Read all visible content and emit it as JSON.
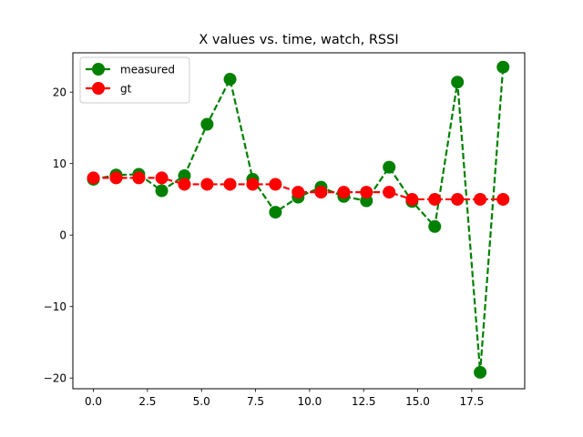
{
  "chart_data": {
    "type": "line",
    "title": "X values vs. time, watch, RSSI",
    "xlabel": "",
    "ylabel": "",
    "xlim": [
      -0.95,
      19.95
    ],
    "ylim": [
      -21.5,
      25.5
    ],
    "xticks": [
      0.0,
      2.5,
      5.0,
      7.5,
      10.0,
      12.5,
      15.0,
      17.5
    ],
    "xtick_labels": [
      "0.0",
      "2.5",
      "5.0",
      "7.5",
      "10.0",
      "12.5",
      "15.0",
      "17.5"
    ],
    "yticks": [
      -20,
      -10,
      0,
      10,
      20
    ],
    "ytick_labels": [
      "−20",
      "−10",
      "0",
      "10",
      "20"
    ],
    "grid": false,
    "legend_position": "top-left",
    "series": [
      {
        "name": "measured",
        "color": "#008000",
        "line_style": "dashed",
        "marker": "circle",
        "x": [
          0.0,
          1.05,
          2.1,
          3.16,
          4.21,
          5.26,
          6.32,
          7.37,
          8.42,
          9.47,
          10.53,
          11.58,
          12.63,
          13.68,
          14.74,
          15.79,
          16.84,
          17.89,
          18.95
        ],
        "values": [
          7.8,
          8.4,
          8.5,
          6.2,
          8.3,
          15.5,
          21.8,
          7.8,
          3.2,
          5.3,
          6.7,
          5.4,
          4.8,
          9.5,
          4.7,
          1.2,
          21.4,
          -19.2,
          23.5
        ]
      },
      {
        "name": "gt",
        "color": "#ff0000",
        "line_style": "dashed",
        "marker": "circle",
        "x": [
          0.0,
          1.05,
          2.1,
          3.16,
          4.21,
          5.26,
          6.32,
          7.37,
          8.42,
          9.47,
          10.53,
          11.58,
          12.63,
          13.68,
          14.74,
          15.79,
          16.84,
          17.89,
          18.95
        ],
        "values": [
          8.0,
          8.0,
          8.0,
          8.0,
          7.1,
          7.1,
          7.1,
          7.1,
          7.1,
          6.0,
          6.0,
          6.0,
          6.0,
          6.0,
          5.0,
          5.0,
          5.0,
          5.0,
          5.0
        ]
      }
    ]
  }
}
